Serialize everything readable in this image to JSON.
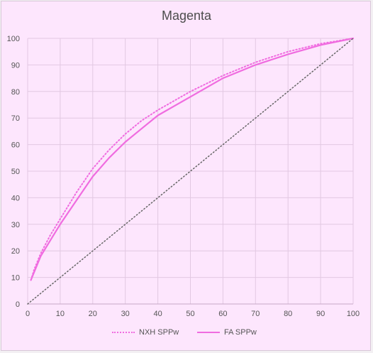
{
  "chart_data": {
    "type": "line",
    "title": "Magenta",
    "xlabel": "",
    "ylabel": "",
    "xlim": [
      0,
      100
    ],
    "ylim": [
      0,
      100
    ],
    "xticks": [
      0,
      10,
      20,
      30,
      40,
      50,
      60,
      70,
      80,
      90,
      100
    ],
    "yticks": [
      0,
      10,
      20,
      30,
      40,
      50,
      60,
      70,
      80,
      90,
      100
    ],
    "grid": true,
    "legend_position": "bottom",
    "series": [
      {
        "name": "NXH SPPw",
        "style": "dotted",
        "color": "#f06ce0",
        "x": [
          1,
          2,
          4,
          7,
          10,
          15,
          20,
          25,
          30,
          35,
          40,
          50,
          60,
          70,
          80,
          90,
          100
        ],
        "y": [
          9,
          13,
          19,
          26,
          32,
          42,
          51,
          58,
          64,
          69,
          73,
          80,
          86,
          91,
          95,
          98,
          100
        ]
      },
      {
        "name": "FA SPPw",
        "style": "solid",
        "color": "#f06ce0",
        "x": [
          1,
          2,
          4,
          7,
          10,
          15,
          20,
          25,
          30,
          35,
          40,
          50,
          60,
          70,
          80,
          90,
          100
        ],
        "y": [
          9,
          12,
          18,
          24,
          30,
          39,
          48,
          55,
          61,
          66,
          71,
          78,
          85,
          90,
          94,
          97.5,
          100
        ]
      },
      {
        "name": "",
        "style": "dotted",
        "color": "#666666",
        "x": [
          0,
          100
        ],
        "y": [
          0,
          100
        ]
      }
    ]
  }
}
